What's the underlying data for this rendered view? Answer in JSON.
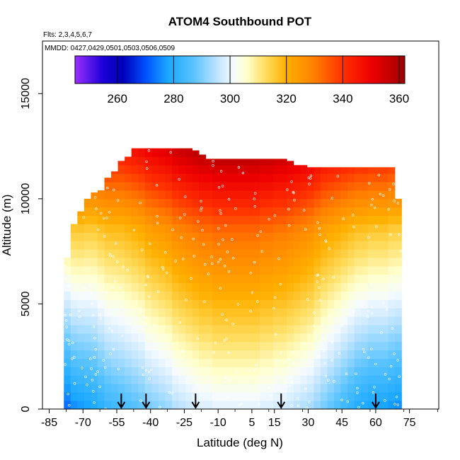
{
  "chart_data": {
    "type": "heatmap",
    "title": "ATOM4 Southbound POT",
    "flights_note": "Flts: 2,3,4,5,6,7",
    "dates_note": "MMDD: 0427,0429,0501,0503,0506,0509",
    "xlabel": "Latitude (deg N)",
    "ylabel": "Altitude (m)",
    "xlim": [
      -88,
      88
    ],
    "ylim": [
      0,
      17500
    ],
    "x_ticks": [
      -85,
      -70,
      -55,
      -40,
      -25,
      -10,
      5,
      15,
      30,
      45,
      60,
      75
    ],
    "x_tick_labels": [
      "-85",
      "-70",
      "-55",
      "-40",
      "-25",
      "-10",
      "5",
      "15",
      "30",
      "45",
      "60",
      "75"
    ],
    "y_ticks": [
      0,
      5000,
      10000,
      15000
    ],
    "y_tick_labels": [
      "0",
      "5000",
      "10000",
      "15000"
    ],
    "colorbar": {
      "range": [
        245,
        362
      ],
      "ticks": [
        260,
        280,
        300,
        320,
        340,
        360
      ],
      "tick_labels": [
        "260",
        "280",
        "300",
        "320",
        "340",
        "360"
      ],
      "stops": [
        {
          "v": 245,
          "c": "#9b30ff"
        },
        {
          "v": 255,
          "c": "#1a00d8"
        },
        {
          "v": 262,
          "c": "#0000b8"
        },
        {
          "v": 270,
          "c": "#0050ff"
        },
        {
          "v": 278,
          "c": "#1aa8ff"
        },
        {
          "v": 287,
          "c": "#59c3ff"
        },
        {
          "v": 296,
          "c": "#c4e6ff"
        },
        {
          "v": 301,
          "c": "#f4faff"
        },
        {
          "v": 306,
          "c": "#ffffcc"
        },
        {
          "v": 312,
          "c": "#ffe066"
        },
        {
          "v": 320,
          "c": "#ffb000"
        },
        {
          "v": 330,
          "c": "#ff8000"
        },
        {
          "v": 340,
          "c": "#ff3000"
        },
        {
          "v": 350,
          "c": "#ee0000"
        },
        {
          "v": 362,
          "c": "#a00000"
        }
      ]
    },
    "profile_latitudes": [
      -53,
      -42,
      -20,
      18,
      60
    ],
    "field_columns": [
      {
        "lat": -77,
        "top": 7200,
        "surf": 272,
        "grad": 5.0
      },
      {
        "lat": -74,
        "top": 8800,
        "surf": 275,
        "grad": 4.8
      },
      {
        "lat": -71,
        "top": 9400,
        "surf": 276,
        "grad": 4.7
      },
      {
        "lat": -68,
        "top": 10000,
        "surf": 277,
        "grad": 4.5
      },
      {
        "lat": -65,
        "top": 10300,
        "surf": 278,
        "grad": 4.4
      },
      {
        "lat": -62,
        "top": 10400,
        "surf": 280,
        "grad": 4.3
      },
      {
        "lat": -59,
        "top": 11000,
        "surf": 282,
        "grad": 4.2
      },
      {
        "lat": -56,
        "top": 11300,
        "surf": 283,
        "grad": 4.1
      },
      {
        "lat": -53,
        "top": 11800,
        "surf": 284,
        "grad": 4.0
      },
      {
        "lat": -50,
        "top": 12000,
        "surf": 285,
        "grad": 4.0
      },
      {
        "lat": -47,
        "top": 12400,
        "surf": 286,
        "grad": 4.0
      },
      {
        "lat": -44,
        "top": 12400,
        "surf": 287,
        "grad": 4.0
      },
      {
        "lat": -41,
        "top": 12400,
        "surf": 289,
        "grad": 4.0
      },
      {
        "lat": -38,
        "top": 12400,
        "surf": 290,
        "grad": 4.0
      },
      {
        "lat": -35,
        "top": 12400,
        "surf": 291,
        "grad": 4.0
      },
      {
        "lat": -32,
        "top": 12400,
        "surf": 292,
        "grad": 4.0
      },
      {
        "lat": -29,
        "top": 12400,
        "surf": 294,
        "grad": 4.0
      },
      {
        "lat": -26,
        "top": 12400,
        "surf": 295,
        "grad": 4.0
      },
      {
        "lat": -23,
        "top": 12400,
        "surf": 296,
        "grad": 4.0
      },
      {
        "lat": -20,
        "top": 12300,
        "surf": 297,
        "grad": 4.0
      },
      {
        "lat": -17,
        "top": 12100,
        "surf": 298,
        "grad": 4.0
      },
      {
        "lat": -14,
        "top": 11900,
        "surf": 298,
        "grad": 4.0
      },
      {
        "lat": -11,
        "top": 11900,
        "surf": 299,
        "grad": 4.0
      },
      {
        "lat": -8,
        "top": 11900,
        "surf": 299,
        "grad": 4.0
      },
      {
        "lat": -5,
        "top": 11900,
        "surf": 299,
        "grad": 4.0
      },
      {
        "lat": -2,
        "top": 11900,
        "surf": 299,
        "grad": 4.0
      },
      {
        "lat": 1,
        "top": 11900,
        "surf": 299,
        "grad": 4.0
      },
      {
        "lat": 4,
        "top": 11900,
        "surf": 299,
        "grad": 4.0
      },
      {
        "lat": 7,
        "top": 11900,
        "surf": 299,
        "grad": 4.0
      },
      {
        "lat": 10,
        "top": 11900,
        "surf": 298,
        "grad": 4.0
      },
      {
        "lat": 13,
        "top": 11900,
        "surf": 298,
        "grad": 4.0
      },
      {
        "lat": 16,
        "top": 11900,
        "surf": 297,
        "grad": 4.0
      },
      {
        "lat": 19,
        "top": 11900,
        "surf": 297,
        "grad": 4.0
      },
      {
        "lat": 22,
        "top": 11800,
        "surf": 296,
        "grad": 4.0
      },
      {
        "lat": 25,
        "top": 11600,
        "surf": 295,
        "grad": 4.0
      },
      {
        "lat": 28,
        "top": 11600,
        "surf": 294,
        "grad": 4.0
      },
      {
        "lat": 31,
        "top": 11500,
        "surf": 293,
        "grad": 4.0
      },
      {
        "lat": 34,
        "top": 11500,
        "surf": 291,
        "grad": 4.0
      },
      {
        "lat": 37,
        "top": 11500,
        "surf": 289,
        "grad": 4.0
      },
      {
        "lat": 40,
        "top": 11500,
        "surf": 287,
        "grad": 4.1
      },
      {
        "lat": 43,
        "top": 11500,
        "surf": 285,
        "grad": 4.2
      },
      {
        "lat": 46,
        "top": 11500,
        "surf": 283,
        "grad": 4.3
      },
      {
        "lat": 49,
        "top": 11500,
        "surf": 281,
        "grad": 4.4
      },
      {
        "lat": 52,
        "top": 11500,
        "surf": 279,
        "grad": 4.5
      },
      {
        "lat": 55,
        "top": 11500,
        "surf": 278,
        "grad": 4.6
      },
      {
        "lat": 58,
        "top": 11500,
        "surf": 277,
        "grad": 4.6
      },
      {
        "lat": 61,
        "top": 11500,
        "surf": 277,
        "grad": 4.6
      },
      {
        "lat": 64,
        "top": 11500,
        "surf": 277,
        "grad": 4.6
      },
      {
        "lat": 67,
        "top": 11500,
        "surf": 276,
        "grad": 4.6
      },
      {
        "lat": 70,
        "top": 10000,
        "surf": 275,
        "grad": 4.7
      }
    ]
  }
}
